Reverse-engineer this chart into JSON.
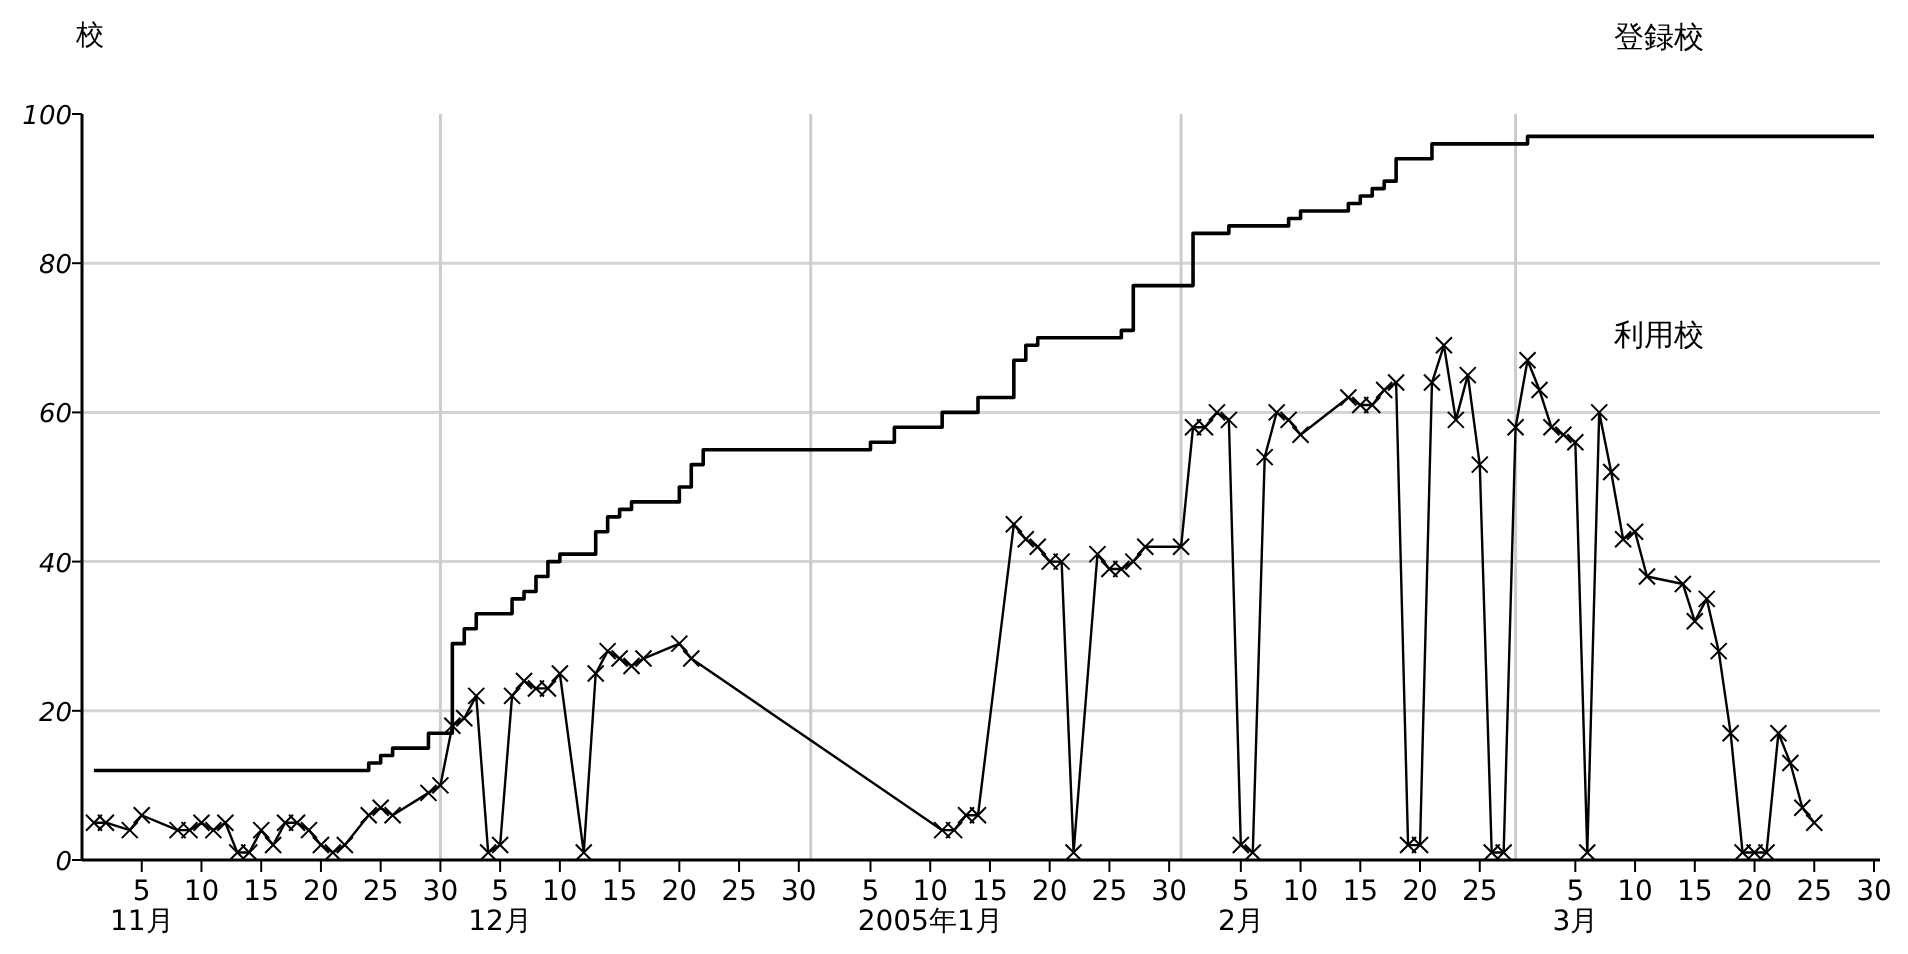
{
  "chart_data": {
    "type": "line",
    "ylabel": "校",
    "xlim": [
      "2004-10-31",
      "2005-03-30"
    ],
    "ylim": [
      0,
      100
    ],
    "yticks": [
      0,
      20,
      40,
      60,
      80,
      100
    ],
    "grid": "y",
    "xticks": [
      {
        "value": "2004-11-05",
        "label": "5\n11月"
      },
      {
        "value": "2004-11-10",
        "label": "10"
      },
      {
        "value": "2004-11-15",
        "label": "15"
      },
      {
        "value": "2004-11-20",
        "label": "20"
      },
      {
        "value": "2004-11-25",
        "label": "25"
      },
      {
        "value": "2004-11-30",
        "label": "30"
      },
      {
        "value": "2004-12-05",
        "label": "5\n12月"
      },
      {
        "value": "2004-12-10",
        "label": "10"
      },
      {
        "value": "2004-12-15",
        "label": "15"
      },
      {
        "value": "2004-12-20",
        "label": "20"
      },
      {
        "value": "2004-12-25",
        "label": "25"
      },
      {
        "value": "2004-12-30",
        "label": "30"
      },
      {
        "value": "2005-01-05",
        "label": "5"
      },
      {
        "value": "2005-01-10",
        "label": "10\n2005年1月"
      },
      {
        "value": "2005-01-15",
        "label": "15"
      },
      {
        "value": "2005-01-20",
        "label": "20"
      },
      {
        "value": "2005-01-25",
        "label": "25"
      },
      {
        "value": "2005-01-30",
        "label": "30"
      },
      {
        "value": "2005-02-05",
        "label": "5\n2月"
      },
      {
        "value": "2005-02-10",
        "label": "10"
      },
      {
        "value": "2005-02-15",
        "label": "15"
      },
      {
        "value": "2005-02-20",
        "label": "20"
      },
      {
        "value": "2005-02-25",
        "label": "25"
      },
      {
        "value": "2005-03-05",
        "label": "5\n3月"
      },
      {
        "value": "2005-03-10",
        "label": "10"
      },
      {
        "value": "2005-03-15",
        "label": "15"
      },
      {
        "value": "2005-03-20",
        "label": "20"
      },
      {
        "value": "2005-03-25",
        "label": "25"
      },
      {
        "value": "2005-03-30",
        "label": "30"
      }
    ],
    "ref_lines": [
      {
        "axis": "x",
        "value": "2004-11-30",
        "color": "#cccccc"
      },
      {
        "axis": "x",
        "value": "2004-12-31",
        "color": "#cccccc"
      },
      {
        "axis": "x",
        "value": "2005-01-31",
        "color": "#cccccc"
      },
      {
        "axis": "x",
        "value": "2005-02-28",
        "color": "#cccccc"
      }
    ],
    "series": [
      {
        "name": "登録校",
        "type": "step",
        "color": "#000000",
        "marker": "none",
        "x": [
          "2004-11-01",
          "2004-11-24",
          "2004-11-25",
          "2004-11-26",
          "2004-11-29",
          "2004-12-01",
          "2004-12-02",
          "2004-12-03",
          "2004-12-06",
          "2004-12-07",
          "2004-12-08",
          "2004-12-09",
          "2004-12-10",
          "2004-12-13",
          "2004-12-14",
          "2004-12-15",
          "2004-12-16",
          "2004-12-20",
          "2004-12-21",
          "2004-12-22",
          "2005-01-05",
          "2005-01-07",
          "2005-01-11",
          "2005-01-14",
          "2005-01-17",
          "2005-01-18",
          "2005-01-19",
          "2005-01-26",
          "2005-01-27",
          "2005-02-01",
          "2005-02-04",
          "2005-02-09",
          "2005-02-10",
          "2005-02-14",
          "2005-02-15",
          "2005-02-16",
          "2005-02-17",
          "2005-02-18",
          "2005-02-21",
          "2005-03-01",
          "2005-03-30"
        ],
        "values": [
          12,
          13,
          14,
          15,
          17,
          29,
          31,
          33,
          35,
          36,
          38,
          40,
          41,
          44,
          46,
          47,
          48,
          50,
          53,
          55,
          56,
          58,
          60,
          62,
          67,
          69,
          70,
          71,
          77,
          84,
          85,
          86,
          87,
          88,
          89,
          90,
          91,
          94,
          96,
          97,
          97
        ]
      },
      {
        "name": "利用校",
        "type": "line",
        "color": "#000000",
        "marker": "cross",
        "x": [
          "2004-11-01",
          "2004-11-02",
          "2004-11-04",
          "2004-11-05",
          "2004-11-08",
          "2004-11-09",
          "2004-11-10",
          "2004-11-11",
          "2004-11-12",
          "2004-11-13",
          "2004-11-14",
          "2004-11-15",
          "2004-11-16",
          "2004-11-17",
          "2004-11-18",
          "2004-11-19",
          "2004-11-20",
          "2004-11-21",
          "2004-11-22",
          "2004-11-24",
          "2004-11-25",
          "2004-11-26",
          "2004-11-29",
          "2004-11-30",
          "2004-12-01",
          "2004-12-02",
          "2004-12-03",
          "2004-12-04",
          "2004-12-05",
          "2004-12-06",
          "2004-12-07",
          "2004-12-08",
          "2004-12-09",
          "2004-12-10",
          "2004-12-12",
          "2004-12-13",
          "2004-12-14",
          "2004-12-15",
          "2004-12-16",
          "2004-12-17",
          "2004-12-20",
          "2004-12-21",
          "2005-01-11",
          "2005-01-12",
          "2005-01-13",
          "2005-01-14",
          "2005-01-17",
          "2005-01-18",
          "2005-01-19",
          "2005-01-20",
          "2005-01-21",
          "2005-01-22",
          "2005-01-24",
          "2005-01-25",
          "2005-01-26",
          "2005-01-27",
          "2005-01-28",
          "2005-01-31",
          "2005-02-01",
          "2005-02-02",
          "2005-02-03",
          "2005-02-04",
          "2005-02-05",
          "2005-02-06",
          "2005-02-07",
          "2005-02-08",
          "2005-02-09",
          "2005-02-10",
          "2005-02-14",
          "2005-02-15",
          "2005-02-16",
          "2005-02-17",
          "2005-02-18",
          "2005-02-19",
          "2005-02-20",
          "2005-02-21",
          "2005-02-22",
          "2005-02-23",
          "2005-02-24",
          "2005-02-25",
          "2005-02-26",
          "2005-02-27",
          "2005-02-28",
          "2005-03-01",
          "2005-03-02",
          "2005-03-03",
          "2005-03-04",
          "2005-03-05",
          "2005-03-06",
          "2005-03-07",
          "2005-03-08",
          "2005-03-09",
          "2005-03-10",
          "2005-03-11",
          "2005-03-14",
          "2005-03-15",
          "2005-03-16",
          "2005-03-17",
          "2005-03-18",
          "2005-03-19",
          "2005-03-20",
          "2005-03-21",
          "2005-03-22",
          "2005-03-23",
          "2005-03-24",
          "2005-03-25"
        ],
        "values": [
          5,
          5,
          4,
          6,
          4,
          4,
          5,
          4,
          5,
          1,
          1,
          4,
          2,
          5,
          5,
          4,
          2,
          1,
          2,
          6,
          7,
          6,
          9,
          10,
          18,
          19,
          22,
          1,
          2,
          22,
          24,
          23,
          23,
          25,
          1,
          25,
          28,
          27,
          26,
          27,
          29,
          27,
          4,
          4,
          6,
          6,
          45,
          43,
          42,
          40,
          40,
          1,
          41,
          39,
          39,
          40,
          42,
          42,
          58,
          58,
          60,
          59,
          2,
          1,
          54,
          60,
          59,
          57,
          62,
          61,
          61,
          63,
          64,
          2,
          2,
          64,
          69,
          59,
          65,
          53,
          1,
          1,
          58,
          67,
          63,
          58,
          57,
          56,
          1,
          60,
          52,
          43,
          44,
          38,
          37,
          32,
          35,
          28,
          17,
          1,
          1,
          1,
          17,
          13,
          7,
          5
        ]
      }
    ]
  }
}
